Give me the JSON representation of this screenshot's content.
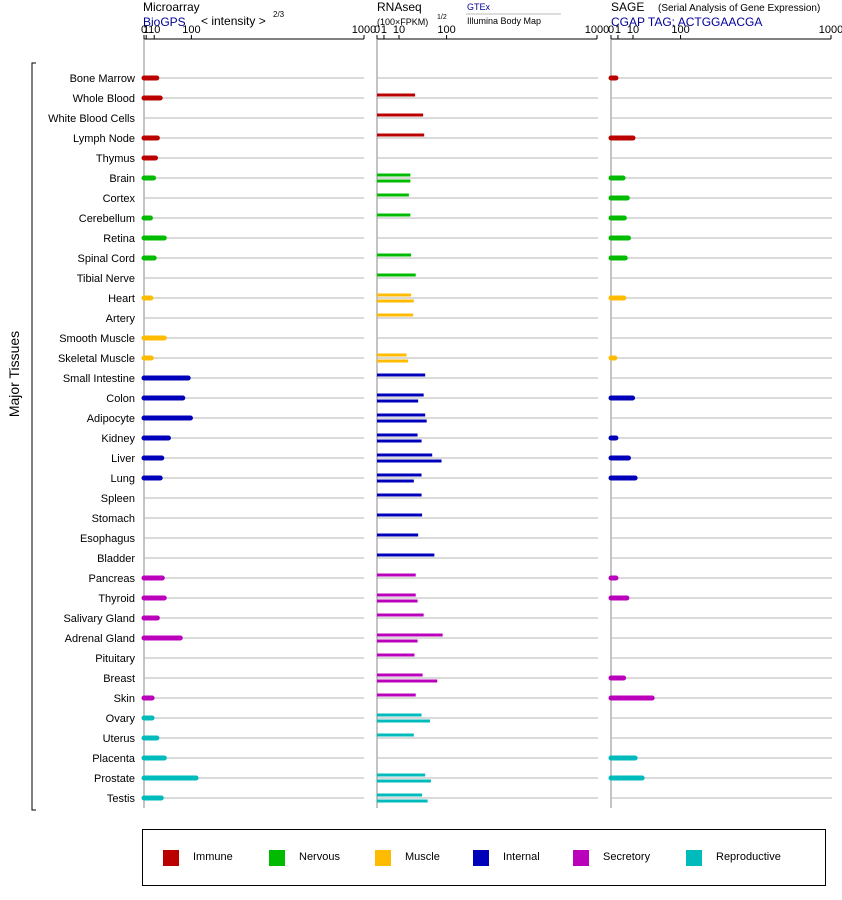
{
  "headers": {
    "microarray": {
      "title": "Microarray",
      "source": "BioGPS",
      "measure": "< intensity >",
      "exponent": "2/3"
    },
    "rnaseq": {
      "title": "RNAseq",
      "unit": "(100×FPKM)",
      "exponent": "1/2",
      "source_top": "GTEx",
      "source_bottom": "Illumina Body Map"
    },
    "sage": {
      "title": "SAGE",
      "subtitle": "(Serial Analysis of Gene Expression)",
      "tag": "CGAP TAG: ACTGGAACGA"
    }
  },
  "y_axis_label": "Major Tissues",
  "colors": {
    "Immune": "#bb0000",
    "Nervous": "#00bb00",
    "Muscle": "#ffbb00",
    "Internal": "#0000bb",
    "Secretory": "#bb00bb",
    "Reproductive": "#00bbbb"
  },
  "legend": [
    {
      "name": "Immune"
    },
    {
      "name": "Nervous"
    },
    {
      "name": "Muscle"
    },
    {
      "name": "Internal"
    },
    {
      "name": "Secretory"
    },
    {
      "name": "Reproductive"
    }
  ],
  "chart_data": {
    "type": "bar",
    "orientation": "horizontal",
    "x_scale": "power",
    "x_ticks": [
      "0",
      "1",
      "10",
      "100",
      "1000"
    ],
    "panels": [
      {
        "key": "microarray",
        "scale_exponent": 0.6667,
        "xlim": [
          0,
          1000
        ]
      },
      {
        "key": "rnaseq",
        "scale_exponent": 0.5,
        "xlim": [
          0,
          1000
        ]
      },
      {
        "key": "sage",
        "scale_exponent": 0.5,
        "xlim": [
          0,
          1000
        ]
      }
    ],
    "tissues": [
      {
        "name": "Bone Marrow",
        "system": "Immune",
        "microarray": 14,
        "rnaseq": [],
        "sage": 0.5
      },
      {
        "name": "Whole Blood",
        "system": "Immune",
        "microarray": 20,
        "rnaseq": [
          30
        ],
        "sage": null
      },
      {
        "name": "White Blood Cells",
        "system": "Immune",
        "microarray": null,
        "rnaseq": [
          44
        ],
        "sage": null
      },
      {
        "name": "Lymph Node",
        "system": "Immune",
        "microarray": 15,
        "rnaseq": [
          46
        ],
        "sage": 10
      },
      {
        "name": "Thymus",
        "system": "Immune",
        "microarray": 12,
        "rnaseq": [],
        "sage": null
      },
      {
        "name": "Brain",
        "system": "Nervous",
        "microarray": 9,
        "rnaseq": [
          23,
          23
        ],
        "sage": 3
      },
      {
        "name": "Cortex",
        "system": "Nervous",
        "microarray": null,
        "rnaseq": [
          21
        ],
        "sage": 5.5
      },
      {
        "name": "Cerebellum",
        "system": "Nervous",
        "microarray": 5,
        "rnaseq": [
          23
        ],
        "sage": 3.7
      },
      {
        "name": "Retina",
        "system": "Nervous",
        "microarray": 28,
        "rnaseq": [],
        "sage": 6.3
      },
      {
        "name": "Spinal Cord",
        "system": "Nervous",
        "microarray": 10,
        "rnaseq": [
          24
        ],
        "sage": 4.2
      },
      {
        "name": "Tibial Nerve",
        "system": "Nervous",
        "microarray": null,
        "rnaseq": [
          31
        ],
        "sage": null
      },
      {
        "name": "Heart",
        "system": "Muscle",
        "microarray": 5.5,
        "rnaseq": [
          24,
          28
        ],
        "sage": 3.4
      },
      {
        "name": "Artery",
        "system": "Muscle",
        "microarray": null,
        "rnaseq": [
          27
        ],
        "sage": null
      },
      {
        "name": "Smooth Muscle",
        "system": "Muscle",
        "microarray": 28,
        "rnaseq": [],
        "sage": null
      },
      {
        "name": "Skeletal Muscle",
        "system": "Muscle",
        "microarray": 6,
        "rnaseq": [
          18,
          20
        ],
        "sage": 0.3
      },
      {
        "name": "Small Intestine",
        "system": "Internal",
        "microarray": 90,
        "rnaseq": [
          48
        ],
        "sage": null
      },
      {
        "name": "Colon",
        "system": "Internal",
        "microarray": 74,
        "rnaseq": [
          45,
          35
        ],
        "sage": 9.6
      },
      {
        "name": "Adipocyte",
        "system": "Internal",
        "microarray": 97,
        "rnaseq": [
          48,
          51
        ],
        "sage": null
      },
      {
        "name": "Kidney",
        "system": "Internal",
        "microarray": 37,
        "rnaseq": [
          34,
          41
        ],
        "sage": 0.5
      },
      {
        "name": "Liver",
        "system": "Internal",
        "microarray": 23,
        "rnaseq": [
          63,
          86
        ],
        "sage": 6.3
      },
      {
        "name": "Lung",
        "system": "Internal",
        "microarray": 20,
        "rnaseq": [
          41,
          28
        ],
        "sage": 12
      },
      {
        "name": "Spleen",
        "system": "Internal",
        "microarray": null,
        "rnaseq": [
          41
        ],
        "sage": null
      },
      {
        "name": "Stomach",
        "system": "Internal",
        "microarray": null,
        "rnaseq": [
          42
        ],
        "sage": null
      },
      {
        "name": "Esophagus",
        "system": "Internal",
        "microarray": null,
        "rnaseq": [
          35
        ],
        "sage": null
      },
      {
        "name": "Bladder",
        "system": "Internal",
        "microarray": null,
        "rnaseq": [
          68
        ],
        "sage": null
      },
      {
        "name": "Pancreas",
        "system": "Secretory",
        "microarray": 24,
        "rnaseq": [
          31
        ],
        "sage": 0.5
      },
      {
        "name": "Thyroid",
        "system": "Secretory",
        "microarray": 28,
        "rnaseq": [
          31,
          34
        ],
        "sage": 5.2
      },
      {
        "name": "Salivary Gland",
        "system": "Secretory",
        "microarray": 15,
        "rnaseq": [
          45
        ],
        "sage": null
      },
      {
        "name": "Adrenal Gland",
        "system": "Secretory",
        "microarray": 67,
        "rnaseq": [
          89,
          34
        ],
        "sage": null
      },
      {
        "name": "Pituitary",
        "system": "Secretory",
        "microarray": null,
        "rnaseq": [
          29
        ],
        "sage": null
      },
      {
        "name": "Breast",
        "system": "Secretory",
        "microarray": null,
        "rnaseq": [
          43,
          75
        ],
        "sage": 3.3
      },
      {
        "name": "Skin",
        "system": "Secretory",
        "microarray": 7,
        "rnaseq": [
          31
        ],
        "sage": 35
      },
      {
        "name": "Ovary",
        "system": "Reproductive",
        "microarray": 7,
        "rnaseq": [
          41,
          58
        ],
        "sage": null
      },
      {
        "name": "Uterus",
        "system": "Reproductive",
        "microarray": 14,
        "rnaseq": [
          28
        ],
        "sage": null
      },
      {
        "name": "Placenta",
        "system": "Reproductive",
        "microarray": 28,
        "rnaseq": [],
        "sage": 12
      },
      {
        "name": "Prostate",
        "system": "Reproductive",
        "microarray": 115,
        "rnaseq": [
          48,
          60
        ],
        "sage": 20
      },
      {
        "name": "Testis",
        "system": "Reproductive",
        "microarray": 22,
        "rnaseq": [
          42,
          53
        ],
        "sage": null
      }
    ]
  }
}
